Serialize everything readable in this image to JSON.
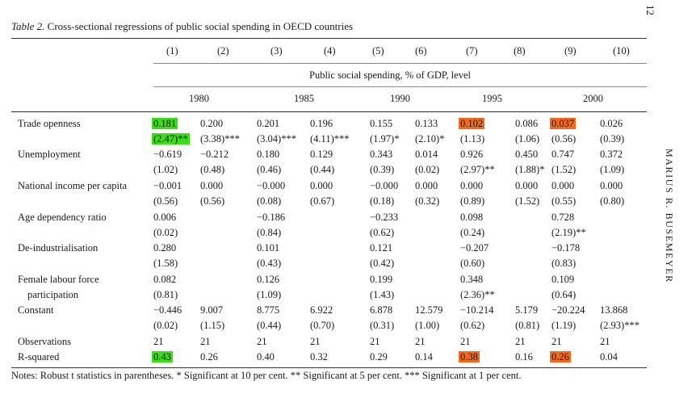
{
  "page": {
    "number": "12",
    "running_head": "MARIUS R. BUSEMEYER"
  },
  "table": {
    "label": "Table 2.",
    "title": "Cross-sectional regressions of public social spending in OECD countries",
    "columns": [
      "(1)",
      "(2)",
      "(3)",
      "(4)",
      "(5)",
      "(6)",
      "(7)",
      "(8)",
      "(9)",
      "(10)"
    ],
    "dependent": "Public social spending, % of GDP, level",
    "years": [
      "1980",
      "1985",
      "1990",
      "1995",
      "2000"
    ],
    "rows": [
      {
        "label": "Trade openness",
        "label2": "",
        "coef": [
          "0.181",
          "0.200",
          "0.201",
          "0.196",
          "0.155",
          "0.133",
          "0.102",
          "0.086",
          "0.037",
          "0.026"
        ],
        "t": [
          "(2.47)**",
          "(3.38)***",
          "(3.04)***",
          "(4.11)***",
          "(1.97)*",
          "(2.10)*",
          "(1.13)",
          "(1.06)",
          "(0.56)",
          "(0.39)"
        ]
      },
      {
        "label": "Unemployment",
        "label2": "",
        "coef": [
          "−0.619",
          "−0.212",
          "0.180",
          "0.129",
          "0.343",
          "0.014",
          "0.926",
          "0.450",
          "0.747",
          "0.372"
        ],
        "t": [
          "(1.02)",
          "(0.48)",
          "(0.46)",
          "(0.44)",
          "(0.39)",
          "(0.02)",
          "(2.97)**",
          "(1.88)*",
          "(1.52)",
          "(1.09)"
        ]
      },
      {
        "label": "National income per capita",
        "label2": "",
        "coef": [
          "−0.001",
          "0.000",
          "−0.000",
          "0.000",
          "−0.000",
          "0.000",
          "0.000",
          "0.000",
          "0.000",
          "0.000"
        ],
        "t": [
          "(0.56)",
          "(0.56)",
          "(0.08)",
          "(0.67)",
          "(0.18)",
          "(0.32)",
          "(0.89)",
          "(1.52)",
          "(0.55)",
          "(0.80)"
        ]
      },
      {
        "label": "Age dependency ratio",
        "label2": "",
        "coef": [
          "0.006",
          "",
          "−0.186",
          "",
          "−0.233",
          "",
          "0.098",
          "",
          "0.728",
          ""
        ],
        "t": [
          "(0.02)",
          "",
          "(0.84)",
          "",
          "(0.62)",
          "",
          "(0.24)",
          "",
          "(2.19)**",
          ""
        ]
      },
      {
        "label": "De-industrialisation",
        "label2": "",
        "coef": [
          "0.280",
          "",
          "0.101",
          "",
          "0.121",
          "",
          "−0.207",
          "",
          "−0.178",
          ""
        ],
        "t": [
          "(1.58)",
          "",
          "(0.43)",
          "",
          "(0.42)",
          "",
          "(0.60)",
          "",
          "(0.83)",
          ""
        ]
      },
      {
        "label": "Female labour force",
        "label2": "participation",
        "coef": [
          "0.082",
          "",
          "0.126",
          "",
          "0.199",
          "",
          "0.348",
          "",
          "0.109",
          ""
        ],
        "t": [
          "(0.81)",
          "",
          "(1.09)",
          "",
          "(1.43)",
          "",
          "(2.36)**",
          "",
          "(0.64)",
          ""
        ]
      },
      {
        "label": "Constant",
        "label2": "",
        "coef": [
          "−0.446",
          "9.007",
          "8.775",
          "6.922",
          "6.878",
          "12.579",
          "−10.214",
          "5.179",
          "−20.224",
          "13.868"
        ],
        "t": [
          "(0.02)",
          "(1.15)",
          "(0.44)",
          "(0.70)",
          "(0.31)",
          "(1.00)",
          "(0.62)",
          "(0.81)",
          "(1.19)",
          "(2.93)***"
        ]
      }
    ],
    "observations": {
      "label": "Observations",
      "values": [
        "21",
        "21",
        "21",
        "21",
        "21",
        "21",
        "21",
        "21",
        "21",
        "21"
      ]
    },
    "rsquared": {
      "label": "R-squared",
      "values": [
        "0.43",
        "0.26",
        "0.40",
        "0.32",
        "0.29",
        "0.14",
        "0.38",
        "0.16",
        "0.26",
        "0.04"
      ]
    },
    "notes": "Notes: Robust t statistics in parentheses. * Significant at 10 per cent. ** Significant at 5 per cent. *** Significant at 1 per cent."
  },
  "highlights": {
    "green": "#3cdc16",
    "orange": "#f4681b",
    "trade_openness_coef": [
      "green",
      "",
      "",
      "",
      "",
      "",
      "orange",
      "",
      "orange",
      ""
    ],
    "trade_openness_t": [
      "green",
      "",
      "",
      "",
      "",
      "",
      "",
      "",
      "",
      ""
    ],
    "rsquared": [
      "green",
      "",
      "",
      "",
      "",
      "",
      "orange",
      "",
      "orange",
      ""
    ]
  }
}
